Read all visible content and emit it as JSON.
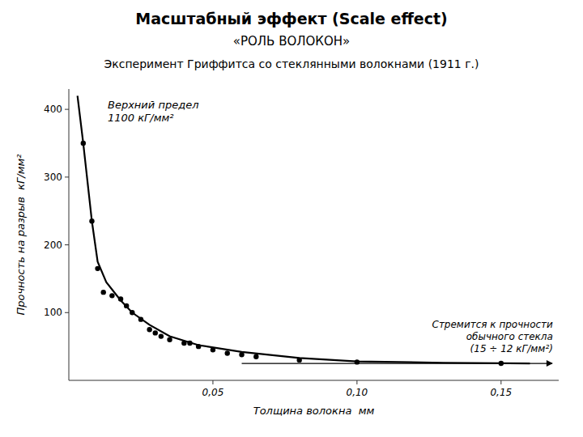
{
  "chart_data": {
    "type": "scatter",
    "title": "Масштабный эффект (Scale effect)",
    "subtitle": "«РОЛЬ ВОЛОКОН»",
    "caption": "Эксперимент Гриффитса со стеклянными волокнами (1911 г.)",
    "x_label": "Толщина волокна  мм",
    "y_label": "Прочность на разрыв  кГ/мм²",
    "xlim": [
      0,
      0.17
    ],
    "ylim": [
      0,
      430
    ],
    "xticks": [
      {
        "value": 0.05,
        "label": "0,05"
      },
      {
        "value": 0.1,
        "label": "0,10"
      },
      {
        "value": 0.15,
        "label": "0,15"
      }
    ],
    "yticks": [
      100,
      200,
      300,
      400
    ],
    "grid": false,
    "series": [
      {
        "type": "line",
        "color": "#000000",
        "line_style": "solid",
        "x": [
          0.003,
          0.005,
          0.008,
          0.01,
          0.013,
          0.018,
          0.022,
          0.028,
          0.035,
          0.045,
          0.06,
          0.08,
          0.1,
          0.13,
          0.16
        ],
        "values": [
          420,
          350,
          235,
          175,
          145,
          118,
          100,
          82,
          65,
          52,
          42,
          33,
          28,
          26,
          25
        ]
      },
      {
        "type": "scatter",
        "color": "#000000",
        "marker": "circle",
        "x": [
          0.005,
          0.008,
          0.01,
          0.012,
          0.015,
          0.018,
          0.02,
          0.022,
          0.025,
          0.028,
          0.03,
          0.032,
          0.035,
          0.04,
          0.042,
          0.045,
          0.05,
          0.055,
          0.06,
          0.065,
          0.08,
          0.1,
          0.15
        ],
        "values": [
          350,
          235,
          165,
          130,
          125,
          120,
          110,
          100,
          90,
          75,
          70,
          65,
          60,
          55,
          55,
          50,
          45,
          40,
          38,
          35,
          30,
          27,
          25
        ]
      }
    ],
    "asymptote": {
      "value": 25,
      "x": [
        0.06,
        0.168
      ],
      "text": "Стремится к прочности\nобычного стекла\n(15 ÷ 12 кГ/мм²)"
    },
    "annotations": [
      {
        "text": "Верхний предел\n1100 кГ/мм²"
      }
    ]
  }
}
